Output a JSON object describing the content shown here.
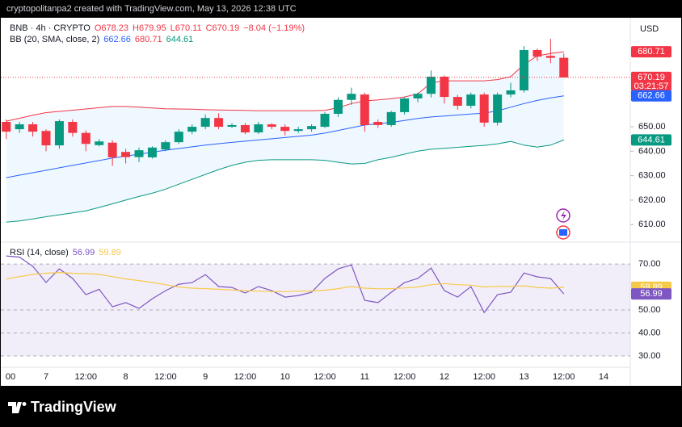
{
  "header": {
    "credit": "cryptopolitanpa2 created with TradingView.com, May 13, 2026 12:38 UTC"
  },
  "chart_data": [
    {
      "type": "candlestick",
      "symbol": "BNB · 4h · CRYPTO",
      "ohlc": [
        "O678.23",
        "H679.95",
        "L670.11",
        "C670.19"
      ],
      "change": "−8.04 (−1.19%)",
      "currency": "USD",
      "countdown": "03:21:57",
      "categories": [
        "00",
        null,
        null,
        "7",
        null,
        null,
        "12:00",
        null,
        null,
        "8",
        null,
        null,
        "12:00",
        null,
        null,
        "9",
        null,
        null,
        "12:00",
        null,
        null,
        "10",
        null,
        null,
        "12:00",
        null,
        null,
        "11",
        null,
        null,
        "12:00",
        null,
        null,
        "12",
        null,
        null,
        "12:00",
        null,
        null,
        "13",
        null,
        null,
        "12:00",
        null,
        null,
        "14",
        null,
        null
      ],
      "open": [
        652,
        649,
        651,
        648.3,
        642.4,
        652,
        647.5,
        642.5,
        643.5,
        639.7,
        637.6,
        637.5,
        640.7,
        643.7,
        648,
        650,
        653.6,
        650,
        650.7,
        647.7,
        651,
        650,
        648.3,
        649,
        650,
        655.3,
        661,
        663.2,
        652,
        650.7,
        656,
        661.6,
        663.5,
        670.5,
        662.2,
        658.6,
        663.2,
        651.7,
        663.2,
        664.9,
        681.4,
        679,
        678.23,
        null,
        null,
        null,
        null,
        null
      ],
      "high": [
        653,
        652,
        652,
        649,
        653,
        653,
        648.5,
        645,
        644.5,
        641,
        641.5,
        642,
        644.5,
        649,
        651,
        655,
        655.5,
        651.5,
        651.5,
        652,
        651.5,
        651,
        650,
        651,
        656,
        662,
        666,
        664,
        653,
        656.5,
        662,
        664,
        673,
        671,
        663,
        664,
        664,
        664,
        668,
        683,
        682,
        686,
        679.95,
        null,
        null,
        null,
        null,
        null
      ],
      "low": [
        645,
        647.5,
        646,
        640,
        641,
        646,
        640,
        642,
        634,
        635,
        635.5,
        637,
        640,
        643,
        647,
        649,
        649,
        649.5,
        647,
        647,
        649,
        646.5,
        647.5,
        648,
        649.5,
        654,
        659,
        648,
        649.5,
        650,
        655,
        660,
        662,
        659.5,
        657,
        657.5,
        650,
        650.5,
        662,
        664,
        677,
        676,
        670.11,
        null,
        null,
        null,
        null,
        null
      ],
      "close": [
        648,
        651,
        648,
        642.4,
        652.3,
        647.5,
        643,
        644,
        637.5,
        637.6,
        640.4,
        641.5,
        643.7,
        648,
        650,
        653.6,
        650,
        650.7,
        647.7,
        651,
        650,
        648.3,
        649,
        650.3,
        655.3,
        661,
        663.5,
        650.7,
        650.7,
        656,
        661.6,
        663.5,
        670.5,
        662.2,
        658.6,
        663.2,
        651.7,
        663.2,
        664.9,
        681.4,
        678.7,
        678.2,
        670.19,
        null,
        null,
        null,
        null,
        null
      ],
      "up_color": "#089981",
      "down_color": "#f23645",
      "overlay": {
        "name": "BB (20, SMA, close, 2)",
        "fill": "#2196f3",
        "series": [
          {
            "color": "#2962ff",
            "values": [
              629.2,
              630.2,
              631.2,
              632.2,
              633.2,
              634.2,
              635.2,
              636.2,
              637.2,
              638,
              638.8,
              639.6,
              640.4,
              641.1,
              641.8,
              642.5,
              643.1,
              643.6,
              644.1,
              644.6,
              645.1,
              645.6,
              646.1,
              646.6,
              647.4,
              648.5,
              649.6,
              650.7,
              651.2,
              651.8,
              652.6,
              653.4,
              654,
              654.4,
              654.8,
              655.2,
              655.6,
              656.5,
              658,
              659.5,
              660.8,
              661.8,
              662.66,
              null,
              null,
              null,
              null,
              null
            ]
          },
          {
            "color": "#f23645",
            "values": [
              652.3,
              653.5,
              654.7,
              655.8,
              656.3,
              656.8,
              657.3,
              657.8,
              658.3,
              658.3,
              658,
              657.7,
              657.4,
              657.3,
              657.2,
              657,
              656.9,
              656.8,
              656.7,
              656.6,
              656.6,
              656.6,
              656.6,
              656.6,
              656.7,
              657.8,
              659.5,
              660.6,
              661,
              661.5,
              662.2,
              663.5,
              668,
              668.8,
              668.8,
              668.8,
              668.8,
              669.3,
              670.5,
              675.5,
              679,
              680,
              680.71,
              null,
              null,
              null,
              null,
              null
            ]
          },
          {
            "color": "#089981",
            "values": [
              611,
              611.5,
              612.3,
              613.2,
              614,
              614.8,
              615.6,
              617,
              618.5,
              620,
              621.5,
              622.8,
              624.5,
              626.5,
              628.5,
              630.5,
              632.5,
              634.2,
              635.5,
              636.3,
              636.5,
              636.5,
              636.5,
              636.5,
              636.3,
              635.5,
              634.8,
              635,
              636.5,
              637.5,
              638.8,
              640,
              640.8,
              641.2,
              641.6,
              642,
              642.4,
              643,
              644,
              642.5,
              641.7,
              642.5,
              644.61,
              null,
              null,
              null,
              null,
              null
            ]
          }
        ]
      },
      "ylim": [
        602.8,
        694.6
      ],
      "yticks": [
        {
          "value": 610,
          "label": "610.00"
        },
        {
          "value": 620,
          "label": "620.00"
        },
        {
          "value": 630,
          "label": "630.00"
        },
        {
          "value": 640,
          "label": "640.00"
        },
        {
          "value": 650,
          "label": "650.00"
        }
      ]
    },
    {
      "type": "line",
      "title": "RSI (14, close)",
      "series": [
        {
          "color": "#7e57c2",
          "values": [
            73.5,
            73,
            69,
            62,
            67.9,
            63.7,
            56.7,
            59,
            51.4,
            53.2,
            50.7,
            54.9,
            58.4,
            61.2,
            61.9,
            65.4,
            60.2,
            59.8,
            57.4,
            60.2,
            58.4,
            55.6,
            56.3,
            57.7,
            63.7,
            67.9,
            69.6,
            54.2,
            53.2,
            57.7,
            61.9,
            63.7,
            68.2,
            58.4,
            55.6,
            60.2,
            48.9,
            56.7,
            57.7,
            66.1,
            64.4,
            63.7,
            56.99,
            null,
            null,
            null,
            null,
            null
          ]
        },
        {
          "color": "#f7c948",
          "values": [
            63.5,
            64.5,
            65.5,
            66,
            66.3,
            66,
            65.8,
            65.5,
            64.5,
            63.5,
            62.8,
            62,
            61,
            60,
            59.5,
            59.3,
            59,
            58.7,
            58.4,
            58.2,
            58,
            58,
            58.2,
            58.3,
            58.6,
            59.3,
            60.2,
            59.5,
            59.2,
            59.3,
            59.6,
            60,
            61,
            61.5,
            61,
            60.8,
            60,
            60.3,
            60.2,
            60.5,
            59.8,
            59.5,
            59.89,
            null,
            null,
            null,
            null,
            null
          ]
        }
      ],
      "band": {
        "from": 30,
        "to": 70,
        "color": "#7e57c2"
      },
      "ylim": [
        25.1,
        79.5
      ],
      "yticks": [
        {
          "value": 30,
          "label": "30.00"
        },
        {
          "value": 40,
          "label": "40.00"
        },
        {
          "value": 50,
          "label": "50.00"
        },
        {
          "value": 70,
          "label": "70.00"
        }
      ]
    }
  ],
  "footer": {
    "logo": "TradingView"
  }
}
